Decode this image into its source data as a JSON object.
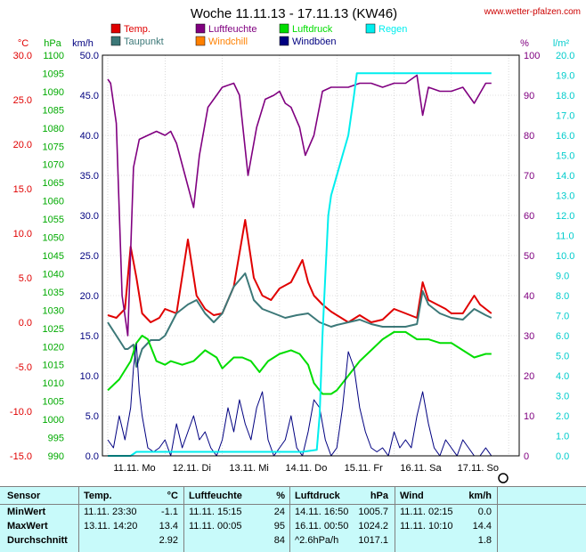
{
  "title": "Woche 11.11.13 - 17.11.13 (KW46)",
  "watermark": "www.wetter-pfalzen.com",
  "colors": {
    "temp": "#e00000",
    "humidity": "#800080",
    "pressure": "#00dd00",
    "rain": "#00eeee",
    "dewpoint": "#3c7878",
    "windchill": "#ff8000",
    "windgust": "#000080",
    "grid": "#c0c0c0",
    "watermark": "#cc0000",
    "table_bg": "#c8fafa"
  },
  "axes": {
    "temp": {
      "unit": "°C",
      "ticks": [
        "30.0",
        "25.0",
        "20.0",
        "15.0",
        "10.0",
        "5.0",
        "0.0",
        "-5.0",
        "-10.0",
        "-15.0"
      ],
      "ylim": [
        -15,
        30
      ]
    },
    "pressure": {
      "unit": "hPa",
      "ticks": [
        "1100",
        "1095",
        "1090",
        "1085",
        "1080",
        "1075",
        "1070",
        "1065",
        "1060",
        "1055",
        "1050",
        "1045",
        "1040",
        "1035",
        "1030",
        "1025",
        "1020",
        "1015",
        "1010",
        "1005",
        "1000",
        "995",
        "990"
      ],
      "ylim": [
        990,
        1100
      ]
    },
    "wind": {
      "unit": "km/h",
      "ticks": [
        "50.0",
        "45.0",
        "40.0",
        "35.0",
        "30.0",
        "25.0",
        "20.0",
        "15.0",
        "10.0",
        "5.0",
        "0.0"
      ],
      "ylim": [
        0,
        50
      ]
    },
    "humidity": {
      "unit": "%",
      "ticks": [
        "100",
        "90",
        "80",
        "70",
        "60",
        "50",
        "40",
        "30",
        "20",
        "10",
        "0"
      ],
      "ylim": [
        0,
        100
      ]
    },
    "rain": {
      "unit": "l/m²",
      "ticks": [
        "20.0",
        "19.0",
        "18.0",
        "17.0",
        "16.0",
        "15.0",
        "14.0",
        "13.0",
        "12.0",
        "11.0",
        "10.0",
        "9.0",
        "8.0",
        "7.0",
        "6.0",
        "5.0",
        "4.0",
        "3.0",
        "2.0",
        "1.0",
        "0.0"
      ],
      "ylim": [
        0,
        20
      ]
    },
    "x": {
      "ticks": [
        "11.11. Mo",
        "12.11. Di",
        "13.11. Mi",
        "14.11. Do",
        "15.11. Fr",
        "16.11. Sa",
        "17.11. So"
      ]
    }
  },
  "legend": [
    {
      "label": "Temp.",
      "color": "#e00000"
    },
    {
      "label": "Luftfeuchte",
      "color": "#800080"
    },
    {
      "label": "Luftdruck",
      "color": "#00dd00"
    },
    {
      "label": "Regen",
      "color": "#00eeee"
    },
    {
      "label": "Taupunkt",
      "color": "#3c7878"
    },
    {
      "label": "Windchill",
      "color": "#ff8000"
    },
    {
      "label": "Windböen",
      "color": "#000080"
    }
  ],
  "chart_data": {
    "type": "line",
    "title": "Woche 11.11.13 - 17.11.13 (KW46)",
    "x_unit": "days since 11.11. 00:00",
    "series": [
      {
        "name": "Temp.",
        "axis": "temp",
        "x": [
          0,
          0.15,
          0.3,
          0.4,
          0.5,
          0.6,
          0.75,
          0.9,
          1.0,
          1.2,
          1.4,
          1.55,
          1.7,
          1.85,
          2.0,
          2.2,
          2.4,
          2.55,
          2.7,
          2.85,
          3.0,
          3.2,
          3.4,
          3.5,
          3.6,
          3.75,
          3.9,
          4.0,
          4.2,
          4.4,
          4.6,
          4.8,
          5.0,
          5.2,
          5.4,
          5.5,
          5.6,
          5.75,
          5.9,
          6.0,
          6.2,
          6.4,
          6.5,
          6.6,
          6.7
        ],
        "values": [
          0.8,
          0.5,
          1.5,
          8.5,
          5,
          1,
          0,
          0.5,
          1.5,
          1,
          9.3,
          3,
          1.5,
          0.8,
          1,
          4,
          11.5,
          5,
          3,
          2.5,
          3.8,
          4.5,
          7,
          4.5,
          3,
          2,
          1.2,
          0.8,
          0,
          0.8,
          0,
          0.3,
          1.5,
          1,
          0.5,
          4.5,
          2.5,
          2,
          1.5,
          1,
          1,
          3,
          2,
          1.5,
          1
        ]
      },
      {
        "name": "Taupunkt",
        "axis": "temp",
        "x": [
          0,
          0.2,
          0.3,
          0.35,
          0.45,
          0.5,
          0.6,
          0.75,
          0.9,
          1.0,
          1.2,
          1.4,
          1.55,
          1.7,
          1.85,
          2.0,
          2.2,
          2.4,
          2.55,
          2.7,
          2.9,
          3.1,
          3.3,
          3.5,
          3.7,
          3.9,
          4.0,
          4.2,
          4.4,
          4.6,
          4.8,
          5.0,
          5.2,
          5.4,
          5.5,
          5.6,
          5.8,
          6.0,
          6.2,
          6.4,
          6.6,
          6.7
        ],
        "values": [
          0,
          -2,
          -3,
          -3,
          -2.5,
          -5,
          -3,
          -2,
          -2,
          -1.5,
          1,
          2,
          2.5,
          1,
          0,
          1,
          4,
          5.5,
          2.5,
          1.5,
          1,
          0.5,
          0.8,
          1,
          0,
          -0.5,
          -0.3,
          0,
          0.3,
          -0.2,
          -0.5,
          -0.5,
          -0.5,
          -0.2,
          3.5,
          2,
          1,
          0.5,
          0.3,
          1.5,
          0.8,
          0.5
        ]
      },
      {
        "name": "Luftfeuchte",
        "axis": "humidity",
        "x": [
          0,
          0.05,
          0.15,
          0.25,
          0.35,
          0.45,
          0.55,
          0.7,
          0.85,
          1.0,
          1.1,
          1.2,
          1.35,
          1.5,
          1.6,
          1.75,
          1.9,
          2.0,
          2.2,
          2.3,
          2.45,
          2.6,
          2.75,
          2.9,
          3.0,
          3.1,
          3.2,
          3.35,
          3.45,
          3.6,
          3.75,
          3.9,
          4.0,
          4.2,
          4.4,
          4.6,
          4.8,
          5.0,
          5.2,
          5.3,
          5.4,
          5.5,
          5.6,
          5.8,
          6.0,
          6.2,
          6.4,
          6.6,
          6.7
        ],
        "values": [
          94,
          93,
          83,
          40,
          30,
          72,
          79,
          80,
          81,
          80,
          81,
          78,
          70,
          62,
          75,
          87,
          90,
          92,
          93,
          90,
          70,
          82,
          89,
          90,
          91,
          88,
          87,
          82,
          75,
          80,
          91,
          92,
          92,
          92,
          93,
          93,
          92,
          93,
          93,
          94,
          95,
          85,
          92,
          91,
          91,
          92,
          88,
          93,
          93
        ]
      },
      {
        "name": "Luftdruck",
        "axis": "pressure",
        "x": [
          0,
          0.2,
          0.4,
          0.5,
          0.6,
          0.7,
          0.85,
          1.0,
          1.1,
          1.3,
          1.5,
          1.7,
          1.9,
          2.0,
          2.2,
          2.35,
          2.5,
          2.65,
          2.8,
          3.0,
          3.2,
          3.35,
          3.5,
          3.6,
          3.75,
          3.9,
          4.0,
          4.2,
          4.4,
          4.6,
          4.8,
          5.0,
          5.2,
          5.4,
          5.6,
          5.8,
          6.0,
          6.2,
          6.4,
          6.6,
          6.7
        ],
        "values": [
          1008,
          1011,
          1016,
          1021,
          1023,
          1022,
          1016,
          1015,
          1016,
          1015,
          1016,
          1019,
          1017,
          1014,
          1017,
          1017,
          1016,
          1013,
          1016,
          1018,
          1019,
          1018,
          1015,
          1010,
          1007,
          1007,
          1008,
          1012,
          1016,
          1019,
          1022,
          1024,
          1024,
          1022,
          1022,
          1021,
          1021,
          1019,
          1017,
          1018,
          1018
        ]
      },
      {
        "name": "Windböen",
        "axis": "wind",
        "x": [
          0,
          0.1,
          0.2,
          0.3,
          0.4,
          0.45,
          0.5,
          0.55,
          0.6,
          0.7,
          0.8,
          0.9,
          1.0,
          1.1,
          1.2,
          1.3,
          1.4,
          1.5,
          1.6,
          1.7,
          1.8,
          1.9,
          2.0,
          2.1,
          2.2,
          2.3,
          2.4,
          2.5,
          2.6,
          2.7,
          2.8,
          2.9,
          3.0,
          3.1,
          3.2,
          3.3,
          3.4,
          3.5,
          3.6,
          3.7,
          3.8,
          3.9,
          4.0,
          4.1,
          4.2,
          4.3,
          4.4,
          4.5,
          4.6,
          4.7,
          4.8,
          4.9,
          5.0,
          5.1,
          5.2,
          5.3,
          5.4,
          5.5,
          5.6,
          5.7,
          5.8,
          5.9,
          6.0,
          6.1,
          6.2,
          6.3,
          6.4,
          6.5,
          6.6,
          6.7
        ],
        "values": [
          2,
          1,
          5,
          2,
          6,
          11,
          14,
          8,
          5,
          1,
          0.5,
          1,
          2,
          0,
          4,
          1,
          3,
          5,
          2,
          3,
          1,
          0,
          2,
          6,
          3,
          7,
          4,
          2,
          6,
          8,
          2,
          0,
          1,
          2,
          5,
          1,
          0,
          3,
          7,
          6,
          2,
          0,
          1,
          6,
          13,
          11,
          6,
          3,
          1,
          0.5,
          1,
          0,
          3,
          1,
          2,
          1,
          5,
          8,
          4,
          1,
          0,
          2,
          1,
          0,
          2,
          1,
          0,
          0,
          1,
          0
        ]
      },
      {
        "name": "Regen",
        "axis": "rain",
        "x": [
          0,
          0.4,
          0.5,
          3.4,
          3.65,
          3.7,
          3.75,
          3.8,
          3.85,
          3.9,
          3.95,
          4.0,
          4.05,
          4.1,
          4.2,
          4.3,
          4.35,
          4.5,
          6.7
        ],
        "values": [
          0,
          0,
          0.2,
          0.2,
          0.3,
          2,
          6,
          9,
          12,
          13,
          13.5,
          14,
          14.5,
          15,
          16,
          18,
          19.1,
          19.1,
          19.1
        ]
      }
    ]
  },
  "table": {
    "header": {
      "sensor": "Sensor",
      "temp": "Temp.",
      "temp_unit": "°C",
      "hum": "Luftfeuchte",
      "hum_unit": "%",
      "press": "Luftdruck",
      "press_unit": "hPa",
      "wind": "Wind",
      "wind_unit": "km/h"
    },
    "rows": [
      {
        "label": "MinWert",
        "t_time": "11.11.  23:30",
        "t_val": "-1.1",
        "h_time": "11.11.  15:15",
        "h_val": "24",
        "p_time": "14.11.  16:50",
        "p_val": "1005.7",
        "w_time": "11.11.  02:15",
        "w_val": "0.0"
      },
      {
        "label": "MaxWert",
        "t_time": "13.11.  14:20",
        "t_val": "13.4",
        "h_time": "11.11.  00:05",
        "h_val": "95",
        "p_time": "16.11.  00:50",
        "p_val": "1024.2",
        "w_time": "11.11.  10:10",
        "w_val": "14.4"
      },
      {
        "label": "Durchschnitt",
        "t_time": "",
        "t_val": "2.92",
        "h_time": "",
        "h_val": "84",
        "p_time": "^2.6hPa/h",
        "p_val": "1017.1",
        "w_time": "",
        "w_val": "1.8"
      }
    ]
  }
}
